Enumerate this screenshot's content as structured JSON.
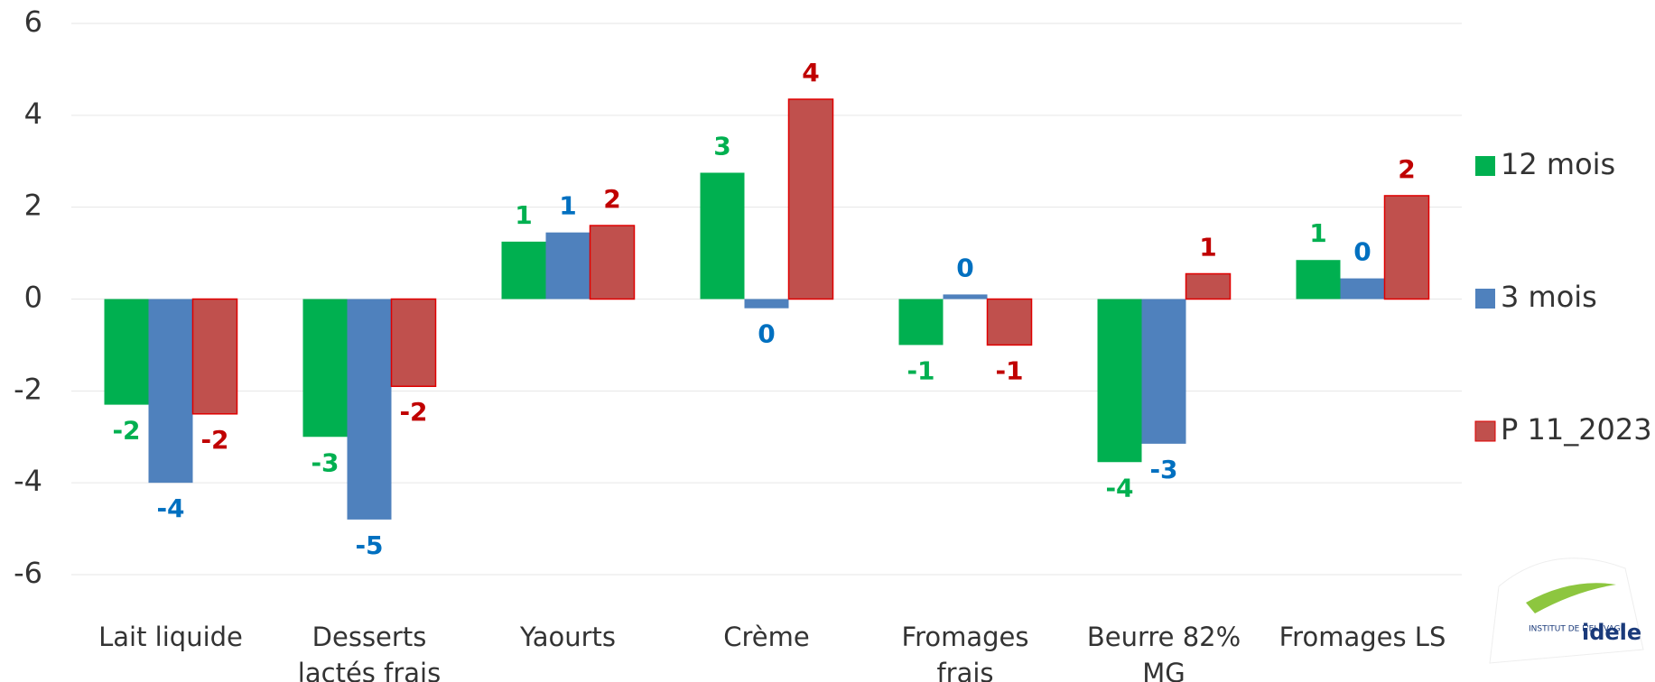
{
  "chart_data": {
    "type": "bar",
    "categories": [
      "Lait liquide",
      "Desserts lactés frais",
      "Yaourts",
      "Crème",
      "Fromages frais",
      "Beurre 82% MG",
      "Fromages LS"
    ],
    "series": [
      {
        "name": "12 mois",
        "color": "#00b050",
        "label_color": "#00b050",
        "values": [
          -2.3,
          -3.0,
          1.25,
          2.75,
          -1.0,
          -3.55,
          0.85
        ],
        "value_labels": [
          "-2",
          "-3",
          "1",
          "3",
          "-1",
          "-4",
          "1"
        ]
      },
      {
        "name": "3 mois",
        "color": "#4f81bd",
        "label_color": "#0070c0",
        "values": [
          -4.0,
          -4.8,
          1.45,
          -0.2,
          0.1,
          -3.15,
          0.45
        ],
        "value_labels": [
          "-4",
          "-5",
          "1",
          "0",
          "0",
          "-3",
          "0"
        ]
      },
      {
        "name": "P 11_2023",
        "color": "#c0504d",
        "label_color": "#c00000",
        "values": [
          -2.5,
          -1.9,
          1.6,
          4.35,
          -1.0,
          0.55,
          2.25
        ],
        "value_labels": [
          "-2",
          "-2",
          "2",
          "4",
          "-1",
          "1",
          "2"
        ]
      }
    ],
    "ylim": [
      -6,
      6
    ],
    "yticks": [
      -6,
      -4,
      -2,
      0,
      2,
      4,
      6
    ],
    "grid": true,
    "legend": "right"
  },
  "logo": {
    "subtitle": "INSTITUT DE L'ELEVAGE",
    "text": "idele"
  }
}
